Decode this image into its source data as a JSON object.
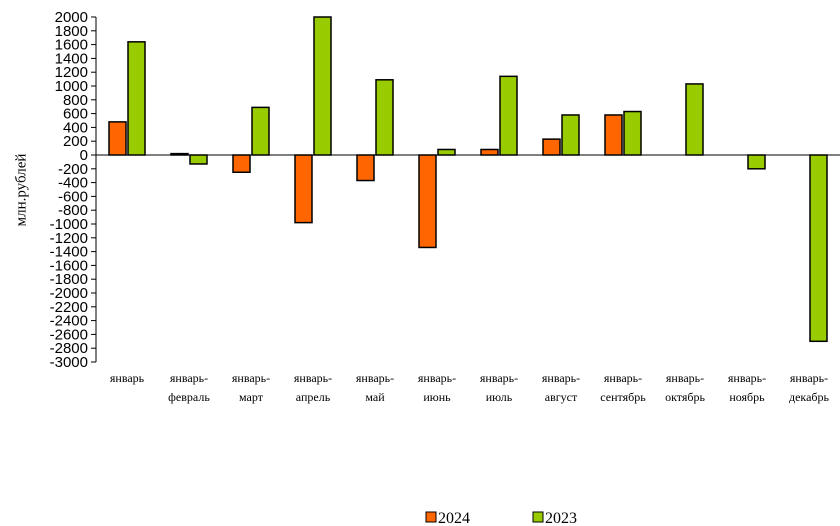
{
  "chart_data": {
    "type": "bar",
    "y_label": "млн.рублей",
    "categories": [
      "январь",
      "январь-февраль",
      "январь-март",
      "январь-апрель",
      "январь-май",
      "январь-июнь",
      "январь-июль",
      "январь-август",
      "январь-сентябрь",
      "январь-октябрь",
      "январь-ноябрь",
      "январь-декабрь"
    ],
    "series": [
      {
        "name": "2024",
        "color": "#ff6600",
        "values": [
          480,
          20,
          -250,
          -980,
          -370,
          -1340,
          80,
          230,
          580,
          null,
          null,
          null
        ]
      },
      {
        "name": "2023",
        "color": "#99cc00",
        "values": [
          1640,
          -130,
          690,
          2000,
          1090,
          80,
          1140,
          580,
          630,
          1030,
          -200,
          -2700
        ]
      }
    ],
    "ylim": [
      -3000,
      2000
    ],
    "yticks": [
      -3000,
      -2800,
      -2600,
      -2400,
      -2200,
      -2000,
      -1800,
      -1600,
      -1400,
      -1200,
      -1000,
      -800,
      -600,
      -400,
      -200,
      0,
      200,
      400,
      600,
      800,
      1000,
      1200,
      1400,
      1600,
      1800,
      2000
    ],
    "legend": "bottom"
  }
}
